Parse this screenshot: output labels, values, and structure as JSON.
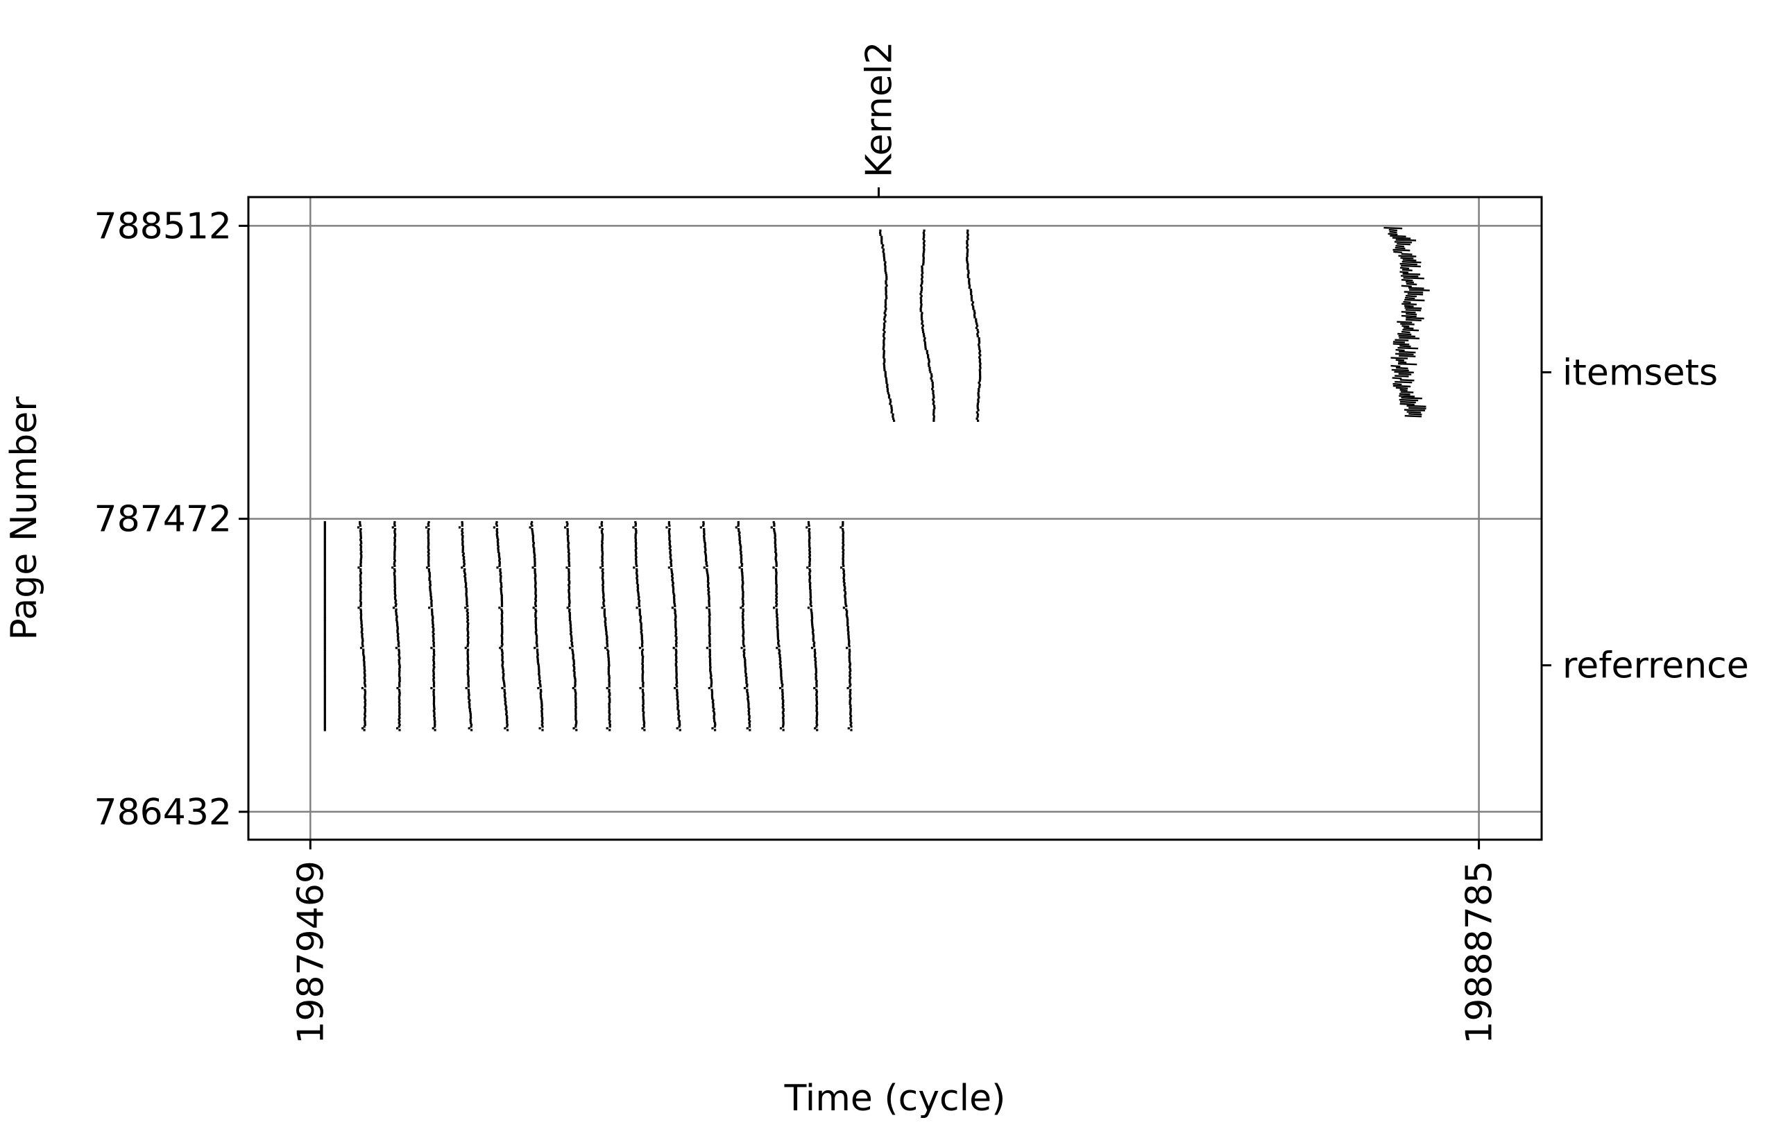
{
  "chart_data": {
    "type": "scatter",
    "xlabel": "Time (cycle)",
    "ylabel": "Page Number",
    "x_ticks": [
      19879469,
      19888785
    ],
    "x_tick_labels": [
      "19879469",
      "19888785"
    ],
    "y_ticks": [
      786432,
      787472,
      788512
    ],
    "y_tick_labels": [
      "786432",
      "787472",
      "788512"
    ],
    "xlim": [
      19878975,
      19889285
    ],
    "ylim": [
      786333,
      788614
    ],
    "grid": true,
    "top_axis": {
      "ticks": [
        19884000
      ],
      "labels": [
        "Kernel2"
      ]
    },
    "right_axis": {
      "ticks": [
        787992,
        786952
      ],
      "labels": [
        "itemsets",
        "referrence"
      ]
    },
    "series": [
      {
        "region": "referrence",
        "marker": "dot",
        "color": "#000000",
        "point_count": 1930,
        "x_range": [
          19879585,
          19883860
        ],
        "y_range": [
          786720,
          787460
        ],
        "pattern": "16 narrow vertical stripes of single-page accesses, about 275 cycles apart, each drifting slightly later in time as page number decreases"
      },
      {
        "region": "itemsets",
        "marker": "dot",
        "color": "#000000",
        "point_count": 265,
        "x_range": [
          19884000,
          19884920
        ],
        "y_range": [
          787820,
          788512
        ],
        "pattern": "three wavy vertical stripes starting near 19884000, 19884330 and 19884720"
      },
      {
        "region": "itemsets",
        "marker": "short-horizontal-segment",
        "color": "#000000",
        "point_count": 94,
        "x_range": [
          19887990,
          19888420
        ],
        "y_range": [
          787830,
          788512
        ],
        "pattern": "cluster of short horizontal bars drifting rightward as page number decreases"
      }
    ]
  }
}
